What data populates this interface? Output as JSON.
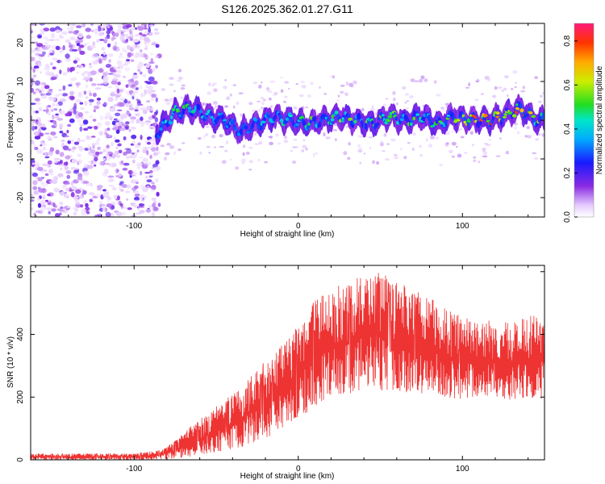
{
  "title": "S126.2025.362.01.27.G11",
  "chart_data": [
    {
      "type": "heatmap",
      "xlabel": "Height of straight line (km)",
      "ylabel": "Frequency (Hz)",
      "xlim": [
        -163,
        150
      ],
      "ylim": [
        -25,
        25
      ],
      "x_ticks": [
        -100,
        0,
        100
      ],
      "y_ticks": [
        -20,
        -10,
        0,
        10,
        20
      ],
      "colorbar": {
        "label": "Normalized spectral amplitude",
        "range": [
          0,
          0.88
        ],
        "ticks": [
          0.0,
          0.2,
          0.4,
          0.6,
          0.8
        ]
      },
      "ridge": {
        "x": [
          -85,
          -75,
          -65,
          -55,
          -45,
          -35,
          -25,
          -15,
          -5,
          5,
          15,
          25,
          35,
          45,
          55,
          65,
          75,
          85,
          95,
          105,
          115,
          125,
          135,
          145
        ],
        "freq": [
          -3,
          2,
          3,
          1,
          0,
          -3,
          -1,
          1,
          0,
          -1,
          0,
          1,
          0,
          -1,
          1,
          0,
          1,
          -1,
          1,
          0,
          0,
          1,
          3,
          0
        ],
        "amplitude": [
          0.3,
          0.4,
          0.45,
          0.35,
          0.3,
          0.3,
          0.35,
          0.4,
          0.35,
          0.45,
          0.5,
          0.5,
          0.45,
          0.45,
          0.45,
          0.45,
          0.4,
          0.45,
          0.55,
          0.6,
          0.65,
          0.6,
          0.65,
          0.5
        ]
      },
      "noise_region_x": [
        -163,
        -88
      ]
    },
    {
      "type": "line",
      "xlabel": "Height of straight line (km)",
      "ylabel": "SNR (10 * v/v)",
      "xlim": [
        -163,
        150
      ],
      "ylim": [
        0,
        620
      ],
      "x_ticks": [
        -100,
        0,
        100
      ],
      "y_ticks": [
        0,
        200,
        400,
        600
      ],
      "color": "#ee3333",
      "envelope": {
        "x": [
          -163,
          -100,
          -85,
          -75,
          -65,
          -55,
          -45,
          -35,
          -25,
          -15,
          -5,
          5,
          10,
          15,
          20,
          25,
          30,
          40,
          50,
          60,
          70,
          80,
          90,
          100,
          110,
          120,
          130,
          140,
          150
        ],
        "low": [
          0,
          0,
          0,
          5,
          10,
          20,
          30,
          40,
          60,
          80,
          120,
          150,
          170,
          190,
          200,
          210,
          210,
          220,
          220,
          220,
          210,
          210,
          200,
          190,
          200,
          200,
          190,
          200,
          190
        ],
        "high": [
          20,
          20,
          30,
          60,
          110,
          150,
          190,
          230,
          290,
          340,
          390,
          470,
          520,
          530,
          540,
          560,
          560,
          600,
          600,
          570,
          540,
          520,
          480,
          460,
          450,
          450,
          440,
          460,
          460
        ]
      }
    }
  ]
}
